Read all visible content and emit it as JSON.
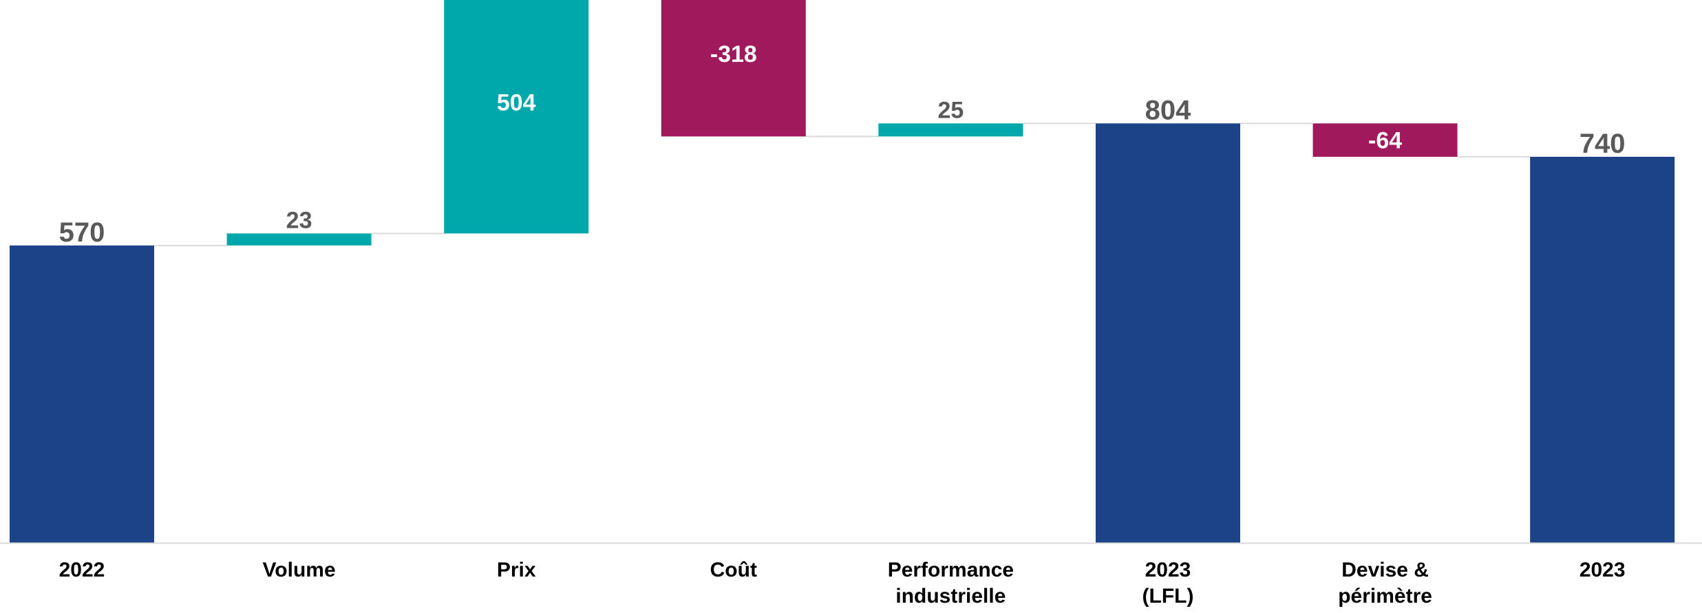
{
  "chart_data": {
    "type": "bar",
    "subtype": "waterfall",
    "title": "",
    "xlabel": "",
    "ylabel": "",
    "ylim": [
      0,
      1030
    ],
    "grid": false,
    "legend": "none",
    "categories": [
      "2022",
      "Volume",
      "Prix",
      "Coût",
      "Performance\nindustrielle",
      "2023\n(LFL)",
      "Devise &\npérimètre",
      "2023"
    ],
    "kinds": [
      "total",
      "delta",
      "delta",
      "delta",
      "delta",
      "total",
      "delta",
      "total"
    ],
    "values": [
      570,
      23,
      504,
      -318,
      25,
      804,
      -64,
      740
    ],
    "value_labels": [
      "570",
      "23",
      "504",
      "-318",
      "25",
      "804",
      "-64",
      "740"
    ],
    "colors": {
      "total": "#1c4387",
      "increase": "#01a8ab",
      "decrease": "#a0195d",
      "connector": "#d9d9d9",
      "axis": "#d9d9d9",
      "label_outside": "#595959",
      "label_inside": "#ffffff",
      "category": "#000000"
    }
  }
}
